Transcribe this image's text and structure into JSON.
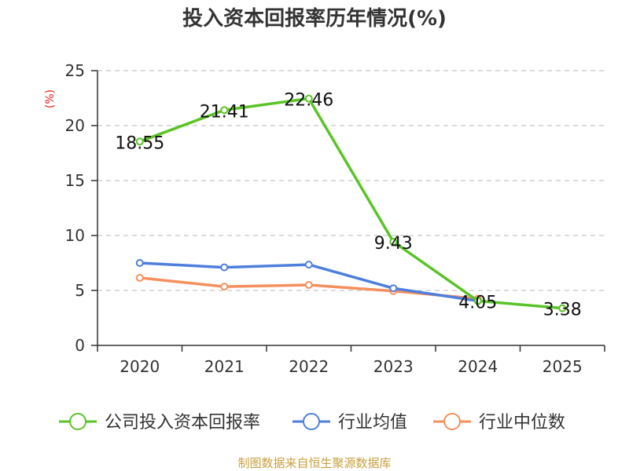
{
  "chart_data": {
    "type": "line",
    "title": "投入资本回报率历年情况(%)",
    "ylabel": "(%)",
    "xlabel": "",
    "categories": [
      "2020",
      "2021",
      "2022",
      "2023",
      "2024",
      "2025"
    ],
    "ylim": [
      0,
      25
    ],
    "yticks": [
      0,
      5,
      10,
      15,
      20,
      25
    ],
    "grid": "horizontal-dashed",
    "legend_position": "bottom",
    "series": [
      {
        "name": "公司投入资本回报率",
        "color": "#5ac426",
        "values": [
          18.55,
          21.41,
          22.46,
          9.43,
          4.05,
          3.38
        ],
        "data_labels": [
          "18.55",
          "21.41",
          "22.46",
          "9.43",
          "4.05",
          "3.38"
        ]
      },
      {
        "name": "行业均值",
        "color": "#4e7fdc",
        "values": [
          7.5,
          7.1,
          7.35,
          5.2,
          4.05,
          null
        ]
      },
      {
        "name": "行业中位数",
        "color": "#f5905e",
        "values": [
          6.15,
          5.35,
          5.5,
          4.95,
          4.25,
          null
        ]
      }
    ],
    "source": "制图数据来自恒生聚源数据库"
  }
}
